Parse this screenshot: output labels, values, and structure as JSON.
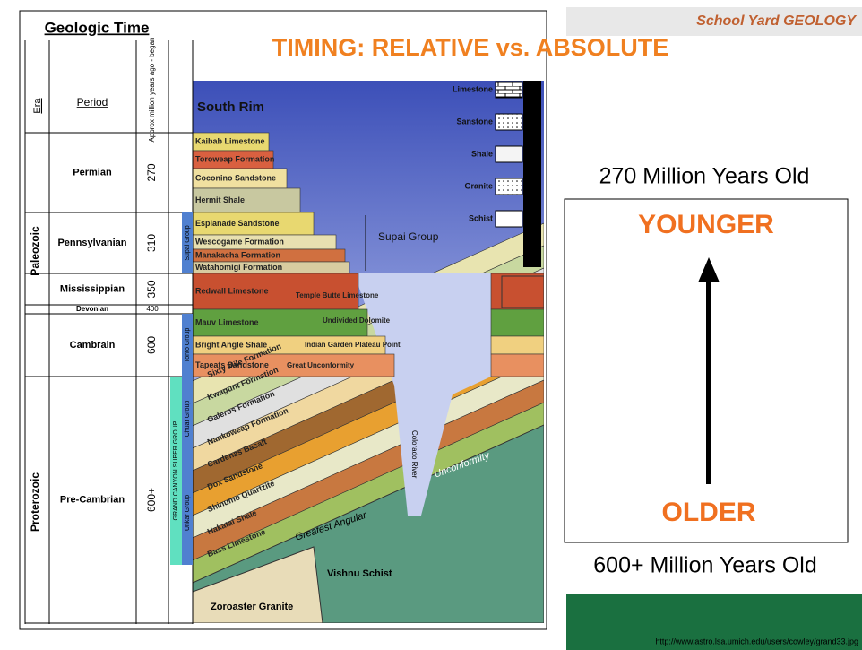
{
  "header": {
    "title": "TIMING: RELATIVE vs. ABSOLUTE",
    "logo": "School Yard GEOLOGY"
  },
  "table": {
    "title": "Geologic Time",
    "columns": [
      "Era",
      "Period",
      "Approx million years ago - began"
    ],
    "eras": [
      "Paleozoic",
      "Proterozoic"
    ],
    "rows": [
      [
        "Permian",
        270
      ],
      [
        "Pennsylvanian",
        310
      ],
      [
        "Mississippian",
        350
      ],
      [
        "Devonian",
        400
      ],
      [
        "Cambrain",
        600
      ],
      [
        "Pre-Cambrian",
        "600+"
      ]
    ],
    "groups": [
      "Supai Group",
      "Tonto Group",
      "GRAND CANYON SUPER GROUP",
      "Chuar Group",
      "Unkar Group"
    ]
  },
  "diagram": {
    "title": "South Rim",
    "strata": [
      "Kaibab Limestone",
      "Toroweap Formation",
      "Coconino Sandstone",
      "Hermit Shale",
      "Esplanade Sandstone",
      "Wescogame Formation",
      "Manakacha Formation",
      "Watahomigi Formation",
      "Redwall Limestone",
      "Mauv Limestone",
      "Bright Angle Shale",
      "Tapeats Sandstone"
    ],
    "strata_notes": [
      "Temple Butte Limestone",
      "Undivided Dolomite",
      "Indian Garden Plateau Point",
      "Great Unconformity"
    ],
    "tilted": [
      "Sixty Mile Formation",
      "Kwagunt Formation",
      "Galeros Formation",
      "Nankoweap Formation",
      "Cardenas Basalt",
      "Dox Sandstone",
      "Shinumo Quartzite",
      "Hakatai Shale",
      "Bass Limestone"
    ],
    "basement": [
      "Vishnu Schist",
      "Zoroaster Granite"
    ],
    "labels": [
      "Supai Group",
      "Colorado River",
      "Unconformity",
      "Greatest Angular"
    ],
    "legend": [
      "Limestone",
      "Sanstone",
      "Shale",
      "Granite",
      "Schist"
    ]
  },
  "panel": {
    "top": "270 Million Years Old",
    "younger": "YOUNGER",
    "older": "OLDER",
    "bottom": "600+ Million Years Old",
    "source": "http://www.astro.lsa.umich.edu/users/cowley/grand33.jpg"
  }
}
